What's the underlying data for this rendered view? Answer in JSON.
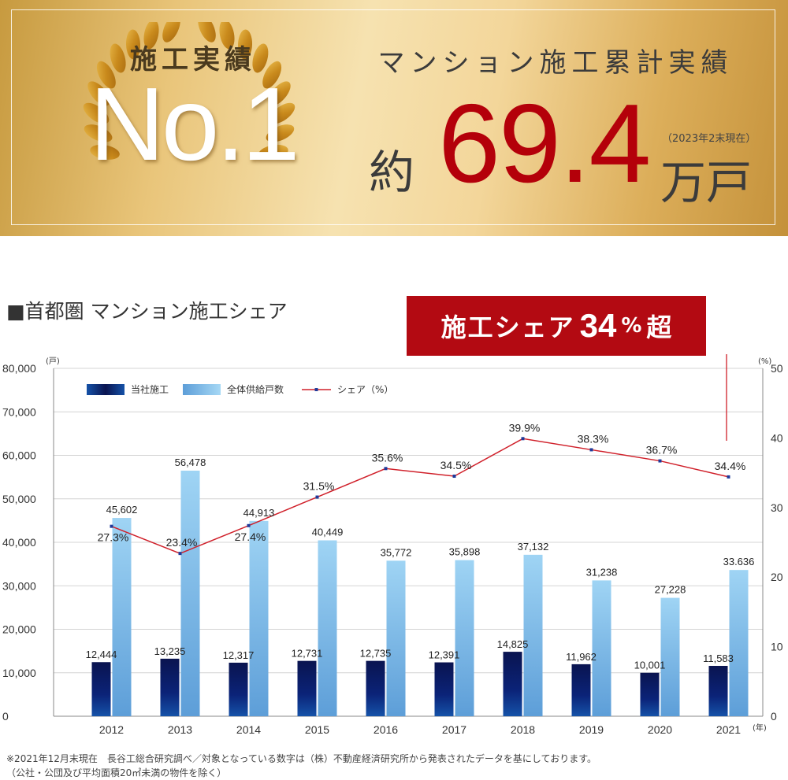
{
  "banner": {
    "award_label": "施工実績",
    "award_big": "No.1",
    "total_label": "マンション施工累計実績",
    "total_prefix": "約",
    "total_value": "69.4",
    "total_note": "（2023年2末現在）",
    "total_unit": "万戸"
  },
  "section_title": "■首都圏 マンション施工シェア",
  "callout": {
    "text": "施工シェア",
    "num": "34",
    "pct": "%",
    "tail": "超"
  },
  "colors": {
    "company_bar": "#0b1f6e",
    "total_bar": "#8fc8ee",
    "share_line": "#d0202a",
    "callout_bg": "#b30a12"
  },
  "chart_data": {
    "type": "bar",
    "unit_left": "(戸)",
    "unit_right": "(%)",
    "unit_x": "(年)",
    "categories": [
      "2012",
      "2013",
      "2014",
      "2015",
      "2016",
      "2017",
      "2018",
      "2019",
      "2020",
      "2021"
    ],
    "series": [
      {
        "name": "当社施工",
        "values": [
          12444,
          13235,
          12317,
          12731,
          12735,
          12391,
          14825,
          11962,
          10001,
          11583
        ],
        "labels": [
          "12,444",
          "13,235",
          "12,317",
          "12,731",
          "12,735",
          "12,391",
          "14,825",
          "11,962",
          "10,001",
          "11,583"
        ]
      },
      {
        "name": "全体供給戸数",
        "values": [
          45602,
          56478,
          44913,
          40449,
          35772,
          35898,
          37132,
          31238,
          27228,
          33636
        ],
        "labels": [
          "45,602",
          "56,478",
          "44,913",
          "40,449",
          "35,772",
          "35,898",
          "37,132",
          "31,238",
          "27,228",
          "33.636"
        ]
      },
      {
        "name": "シェア（%）",
        "axis": "right",
        "values": [
          27.3,
          23.4,
          27.4,
          31.5,
          35.6,
          34.5,
          39.9,
          38.3,
          36.7,
          34.4
        ],
        "labels": [
          "27.3%",
          "23.4%",
          "27.4%",
          "31.5%",
          "35.6%",
          "34.5%",
          "39.9%",
          "38.3%",
          "36.7%",
          "34.4%"
        ]
      }
    ],
    "ylim_left": [
      0,
      80000
    ],
    "yticks_left": [
      "0",
      "10,000",
      "20,000",
      "30,000",
      "40,000",
      "50,000",
      "60,000",
      "70,000",
      "80,000"
    ],
    "ylim_right": [
      0,
      50
    ],
    "yticks_right": [
      "0",
      "10",
      "20",
      "30",
      "40",
      "50"
    ],
    "grid": true,
    "legend_position": "top-left"
  },
  "footnotes": [
    "※2021年12月末現在　長谷工総合研究調べ／対象となっている数字は（株）不動産経済研究所から発表されたデータを基にしております。",
    "（公社・公団及び平均面積20㎡未満の物件を除く）"
  ]
}
